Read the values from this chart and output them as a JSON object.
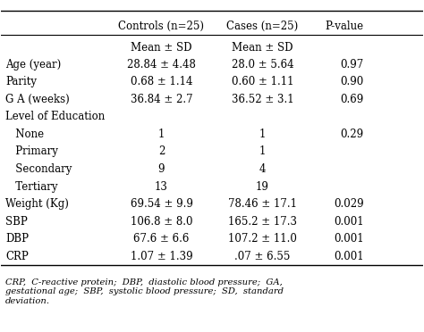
{
  "header_row": [
    "",
    "Controls (n=25)",
    "Cases (n=25)",
    "P-value"
  ],
  "subheader_row": [
    "",
    "Mean ± SD",
    "Mean ± SD",
    ""
  ],
  "rows": [
    [
      "Age (year)",
      "28.84 ± 4.48",
      "28.0 ± 5.64",
      "0.97"
    ],
    [
      "Parity",
      "0.68 ± 1.14",
      "0.60 ± 1.11",
      "0.90"
    ],
    [
      "G A (weeks)",
      "36.84 ± 2.7",
      "36.52 ± 3.1",
      "0.69"
    ],
    [
      "Level of Education",
      "",
      "",
      ""
    ],
    [
      "   None",
      "1",
      "1",
      "0.29"
    ],
    [
      "   Primary",
      "2",
      "1",
      ""
    ],
    [
      "   Secondary",
      "9",
      "4",
      ""
    ],
    [
      "   Tertiary",
      "13",
      "19",
      ""
    ],
    [
      "Weight (Kg)",
      "69.54 ± 9.9",
      "78.46 ± 17.1",
      "0.029"
    ],
    [
      "SBP",
      "106.8 ± 8.0",
      "165.2 ± 17.3",
      "0.001"
    ],
    [
      "DBP",
      "67.6 ± 6.6",
      "107.2 ± 11.0",
      "0.001"
    ],
    [
      "CRP",
      "1.07 ± 1.39",
      ".07 ± 6.55",
      "0.001"
    ]
  ],
  "footnote": "CRP,  C-reactive protein;  DBP,  diastolic blood pressure;  GA,\ngestational age;  SBP,  systolic blood pressure;  SD,  standard\ndeviation.",
  "bg_color": "#ffffff",
  "text_color": "#000000",
  "font_size": 8.5,
  "header_font_size": 8.5
}
